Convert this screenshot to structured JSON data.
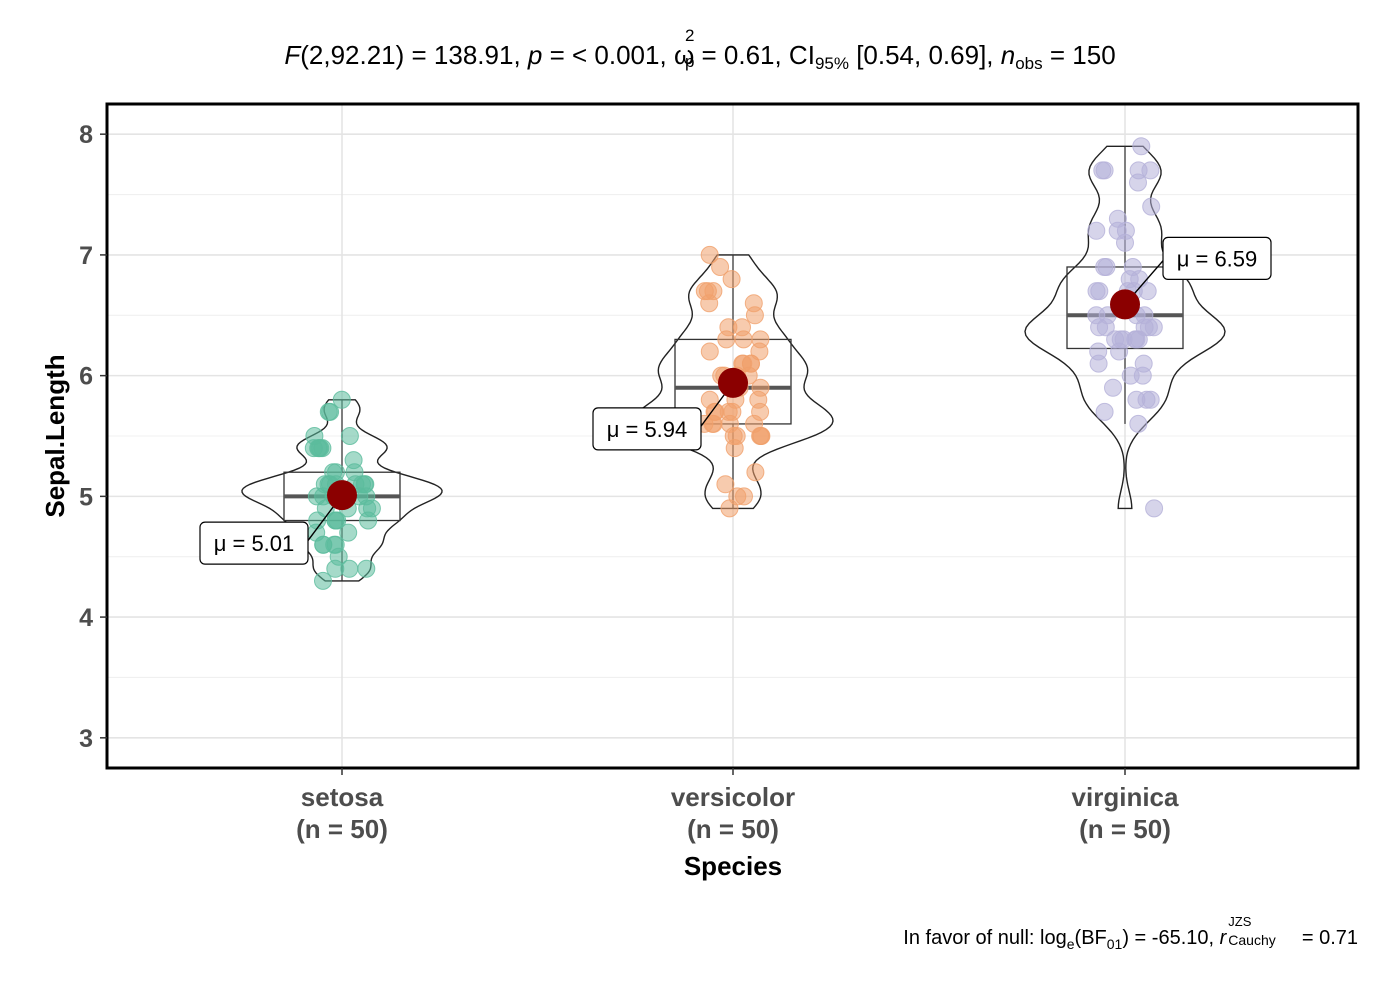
{
  "title": {
    "F_letter": "F",
    "F_args": "(2,92.21) = 138.91, ",
    "p_letter": "p",
    "p_value": " = < 0.001, ",
    "omega": "ω",
    "omega_sup": "2",
    "omega_sub": "p",
    "omega_value": " = 0.61, CI",
    "ci_sub": "95%",
    "ci_value": " [0.54, 0.69], ",
    "n_letter": "n",
    "n_sub": "obs",
    "n_value": " = 150"
  },
  "caption": {
    "prefix": "In favor of null: log",
    "log_sub": "e",
    "bf_open": "(BF",
    "bf_sub": "01",
    "bf_close": ") = -65.10, ",
    "r_letter": "r",
    "r_sup": "JZS",
    "r_sub": "Cauchy",
    "r_value": " = 0.71"
  },
  "chart_data": {
    "type": "violin-box-scatter",
    "xlabel": "Species",
    "ylabel": "Sepal.Length",
    "ylim": [
      2.75,
      8.25
    ],
    "yticks": [
      "3",
      "4",
      "5",
      "6",
      "7",
      "8"
    ],
    "grid": true,
    "groups": [
      {
        "name": "setosa",
        "n_label": "(n = 50)",
        "color": "#5BBB9C",
        "mean": 5.01,
        "mean_label": "μ = 5.01",
        "box": {
          "q1": 4.8,
          "median": 5.0,
          "q3": 5.2,
          "whisker_low": 4.3,
          "whisker_high": 5.8
        },
        "points": [
          5.1,
          4.9,
          4.7,
          4.6,
          5.0,
          5.4,
          4.6,
          5.0,
          4.4,
          4.9,
          5.4,
          4.8,
          4.8,
          4.3,
          5.8,
          5.7,
          5.4,
          5.1,
          5.7,
          5.1,
          5.4,
          5.1,
          4.6,
          5.1,
          4.8,
          5.0,
          5.0,
          5.2,
          5.2,
          4.7,
          4.8,
          5.4,
          5.2,
          5.5,
          4.9,
          5.0,
          5.5,
          4.9,
          4.4,
          5.1,
          5.0,
          4.5,
          4.4,
          5.0,
          5.1,
          4.8,
          5.1,
          4.6,
          5.3,
          5.0
        ]
      },
      {
        "name": "versicolor",
        "n_label": "(n = 50)",
        "color": "#F0A06C",
        "mean": 5.94,
        "mean_label": "μ = 5.94",
        "box": {
          "q1": 5.6,
          "median": 5.9,
          "q3": 6.3,
          "whisker_low": 4.9,
          "whisker_high": 7.0
        },
        "points": [
          7.0,
          6.4,
          6.9,
          5.5,
          6.5,
          5.7,
          6.3,
          4.9,
          6.6,
          5.2,
          5.0,
          5.9,
          6.0,
          6.1,
          5.6,
          6.7,
          5.6,
          5.8,
          6.2,
          5.6,
          5.9,
          6.1,
          6.3,
          6.1,
          6.4,
          6.6,
          6.8,
          6.7,
          6.0,
          5.7,
          5.5,
          5.5,
          5.8,
          6.0,
          5.4,
          6.0,
          6.7,
          6.3,
          5.6,
          5.5,
          5.5,
          6.1,
          5.8,
          5.0,
          5.6,
          5.7,
          5.7,
          6.2,
          5.1,
          5.7
        ]
      },
      {
        "name": "virginica",
        "n_label": "(n = 50)",
        "color": "#B4B0D8",
        "mean": 6.59,
        "mean_label": "μ = 6.59",
        "box": {
          "q1": 6.225,
          "median": 6.5,
          "q3": 6.9,
          "whisker_low": 5.6,
          "whisker_high": 7.9
        },
        "points": [
          6.3,
          5.8,
          7.1,
          6.3,
          6.5,
          7.6,
          4.9,
          7.3,
          6.7,
          7.2,
          6.5,
          6.4,
          6.8,
          5.7,
          5.8,
          6.4,
          6.5,
          7.7,
          7.7,
          6.0,
          6.9,
          5.6,
          7.7,
          6.3,
          6.7,
          7.2,
          6.2,
          6.1,
          6.4,
          7.2,
          7.4,
          7.9,
          6.4,
          6.3,
          6.1,
          7.7,
          6.3,
          6.4,
          6.0,
          6.9,
          6.7,
          6.9,
          5.8,
          6.8,
          6.7,
          6.7,
          6.3,
          6.5,
          6.2,
          5.9
        ]
      }
    ]
  }
}
